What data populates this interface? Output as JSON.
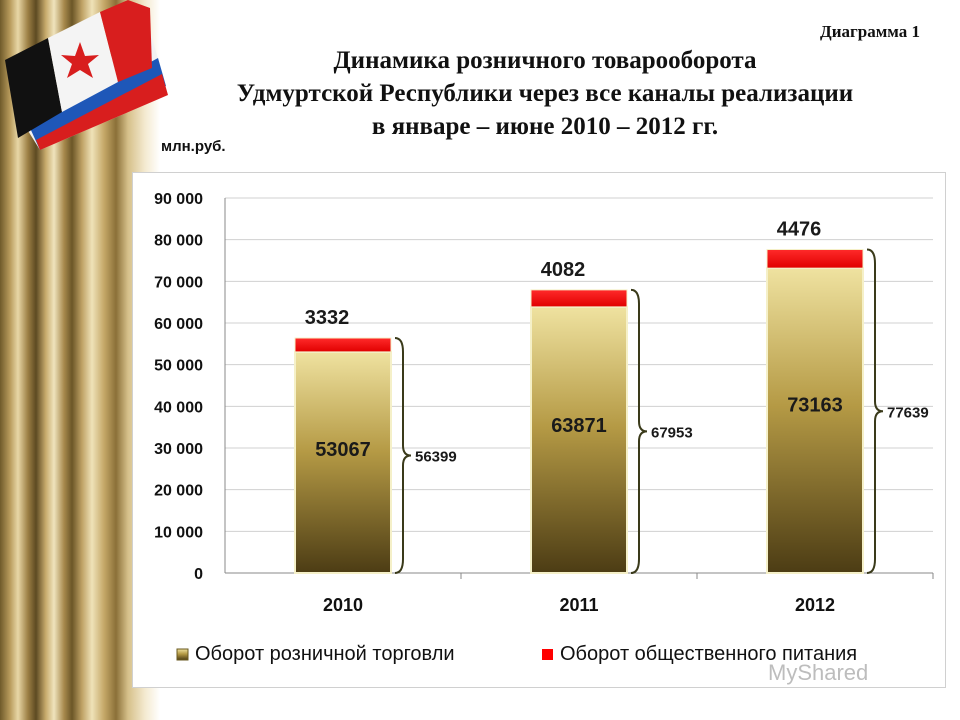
{
  "header": {
    "diagram_label": "Диаграмма 1",
    "title_lines": [
      "Динамика розничного товарооборота",
      "Удмуртской Республики через все каналы реализации",
      "в январе – июне 2010 – 2012  гг."
    ],
    "unit": "млн.руб."
  },
  "watermark": "MyShared",
  "colors": {
    "retail": "#b9a24e",
    "catering": "#ff0000",
    "bracket": "#3a3a1a"
  },
  "chart_data": {
    "type": "bar",
    "stacked": true,
    "categories": [
      "2010",
      "2011",
      "2012"
    ],
    "series": [
      {
        "name": "Оборот розничной торговли",
        "values": [
          53067,
          63871,
          73163
        ]
      },
      {
        "name": "Оборот общественного питания",
        "values": [
          3332,
          4082,
          4476
        ]
      }
    ],
    "data_labels": {
      "retail": [
        "53067",
        "63871",
        "73163"
      ],
      "catering": [
        "3332",
        "4082",
        "4476"
      ],
      "totals": [
        "56399",
        "67953",
        "77639"
      ]
    },
    "y_ticks": [
      "0",
      "10 000",
      "20 000",
      "30 000",
      "40 000",
      "50 000",
      "60 000",
      "70 000",
      "80 000",
      "90 000"
    ],
    "ylim": [
      0,
      90000
    ],
    "grid": true,
    "legend": "bottom"
  }
}
